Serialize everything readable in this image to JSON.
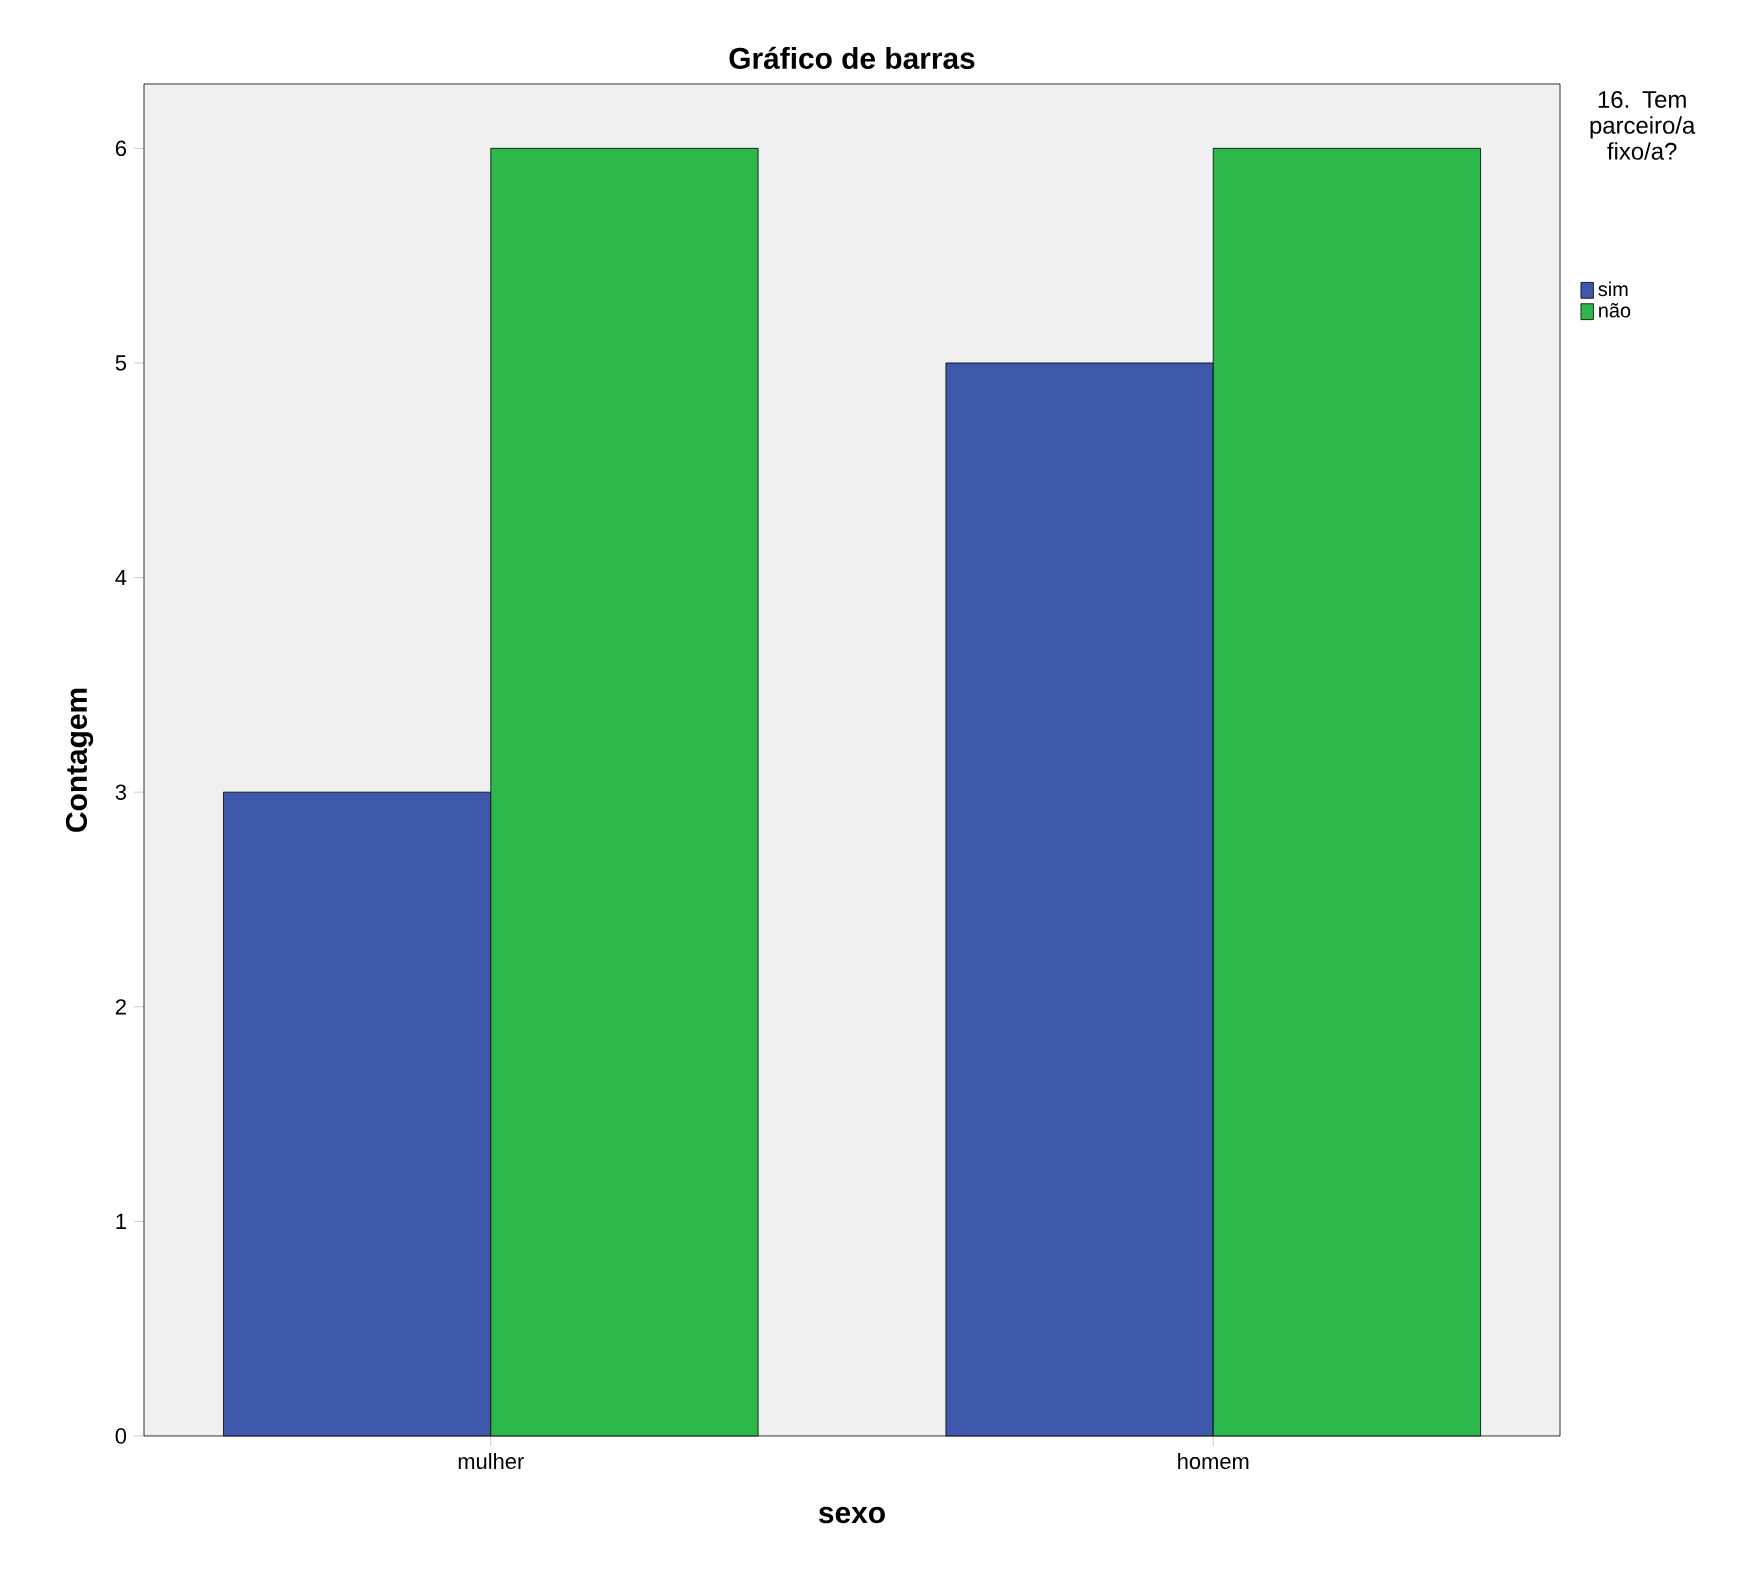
{
  "chart_data": {
    "type": "bar",
    "title": "Gráfico de barras",
    "xlabel": "sexo",
    "ylabel": "Contagem",
    "legend_title": "16. Tem parceiro/a fixo/a?",
    "legend": "top right",
    "categories": [
      "mulher",
      "homem"
    ],
    "series": [
      {
        "name": "sim",
        "color": "#3d58aa",
        "values": [
          3,
          5
        ]
      },
      {
        "name": "não",
        "color": "#2db84b",
        "values": [
          6,
          6
        ]
      }
    ],
    "ylim": [
      0,
      6.3
    ],
    "yticks": [
      0,
      1,
      2,
      3,
      4,
      5,
      6
    ]
  }
}
